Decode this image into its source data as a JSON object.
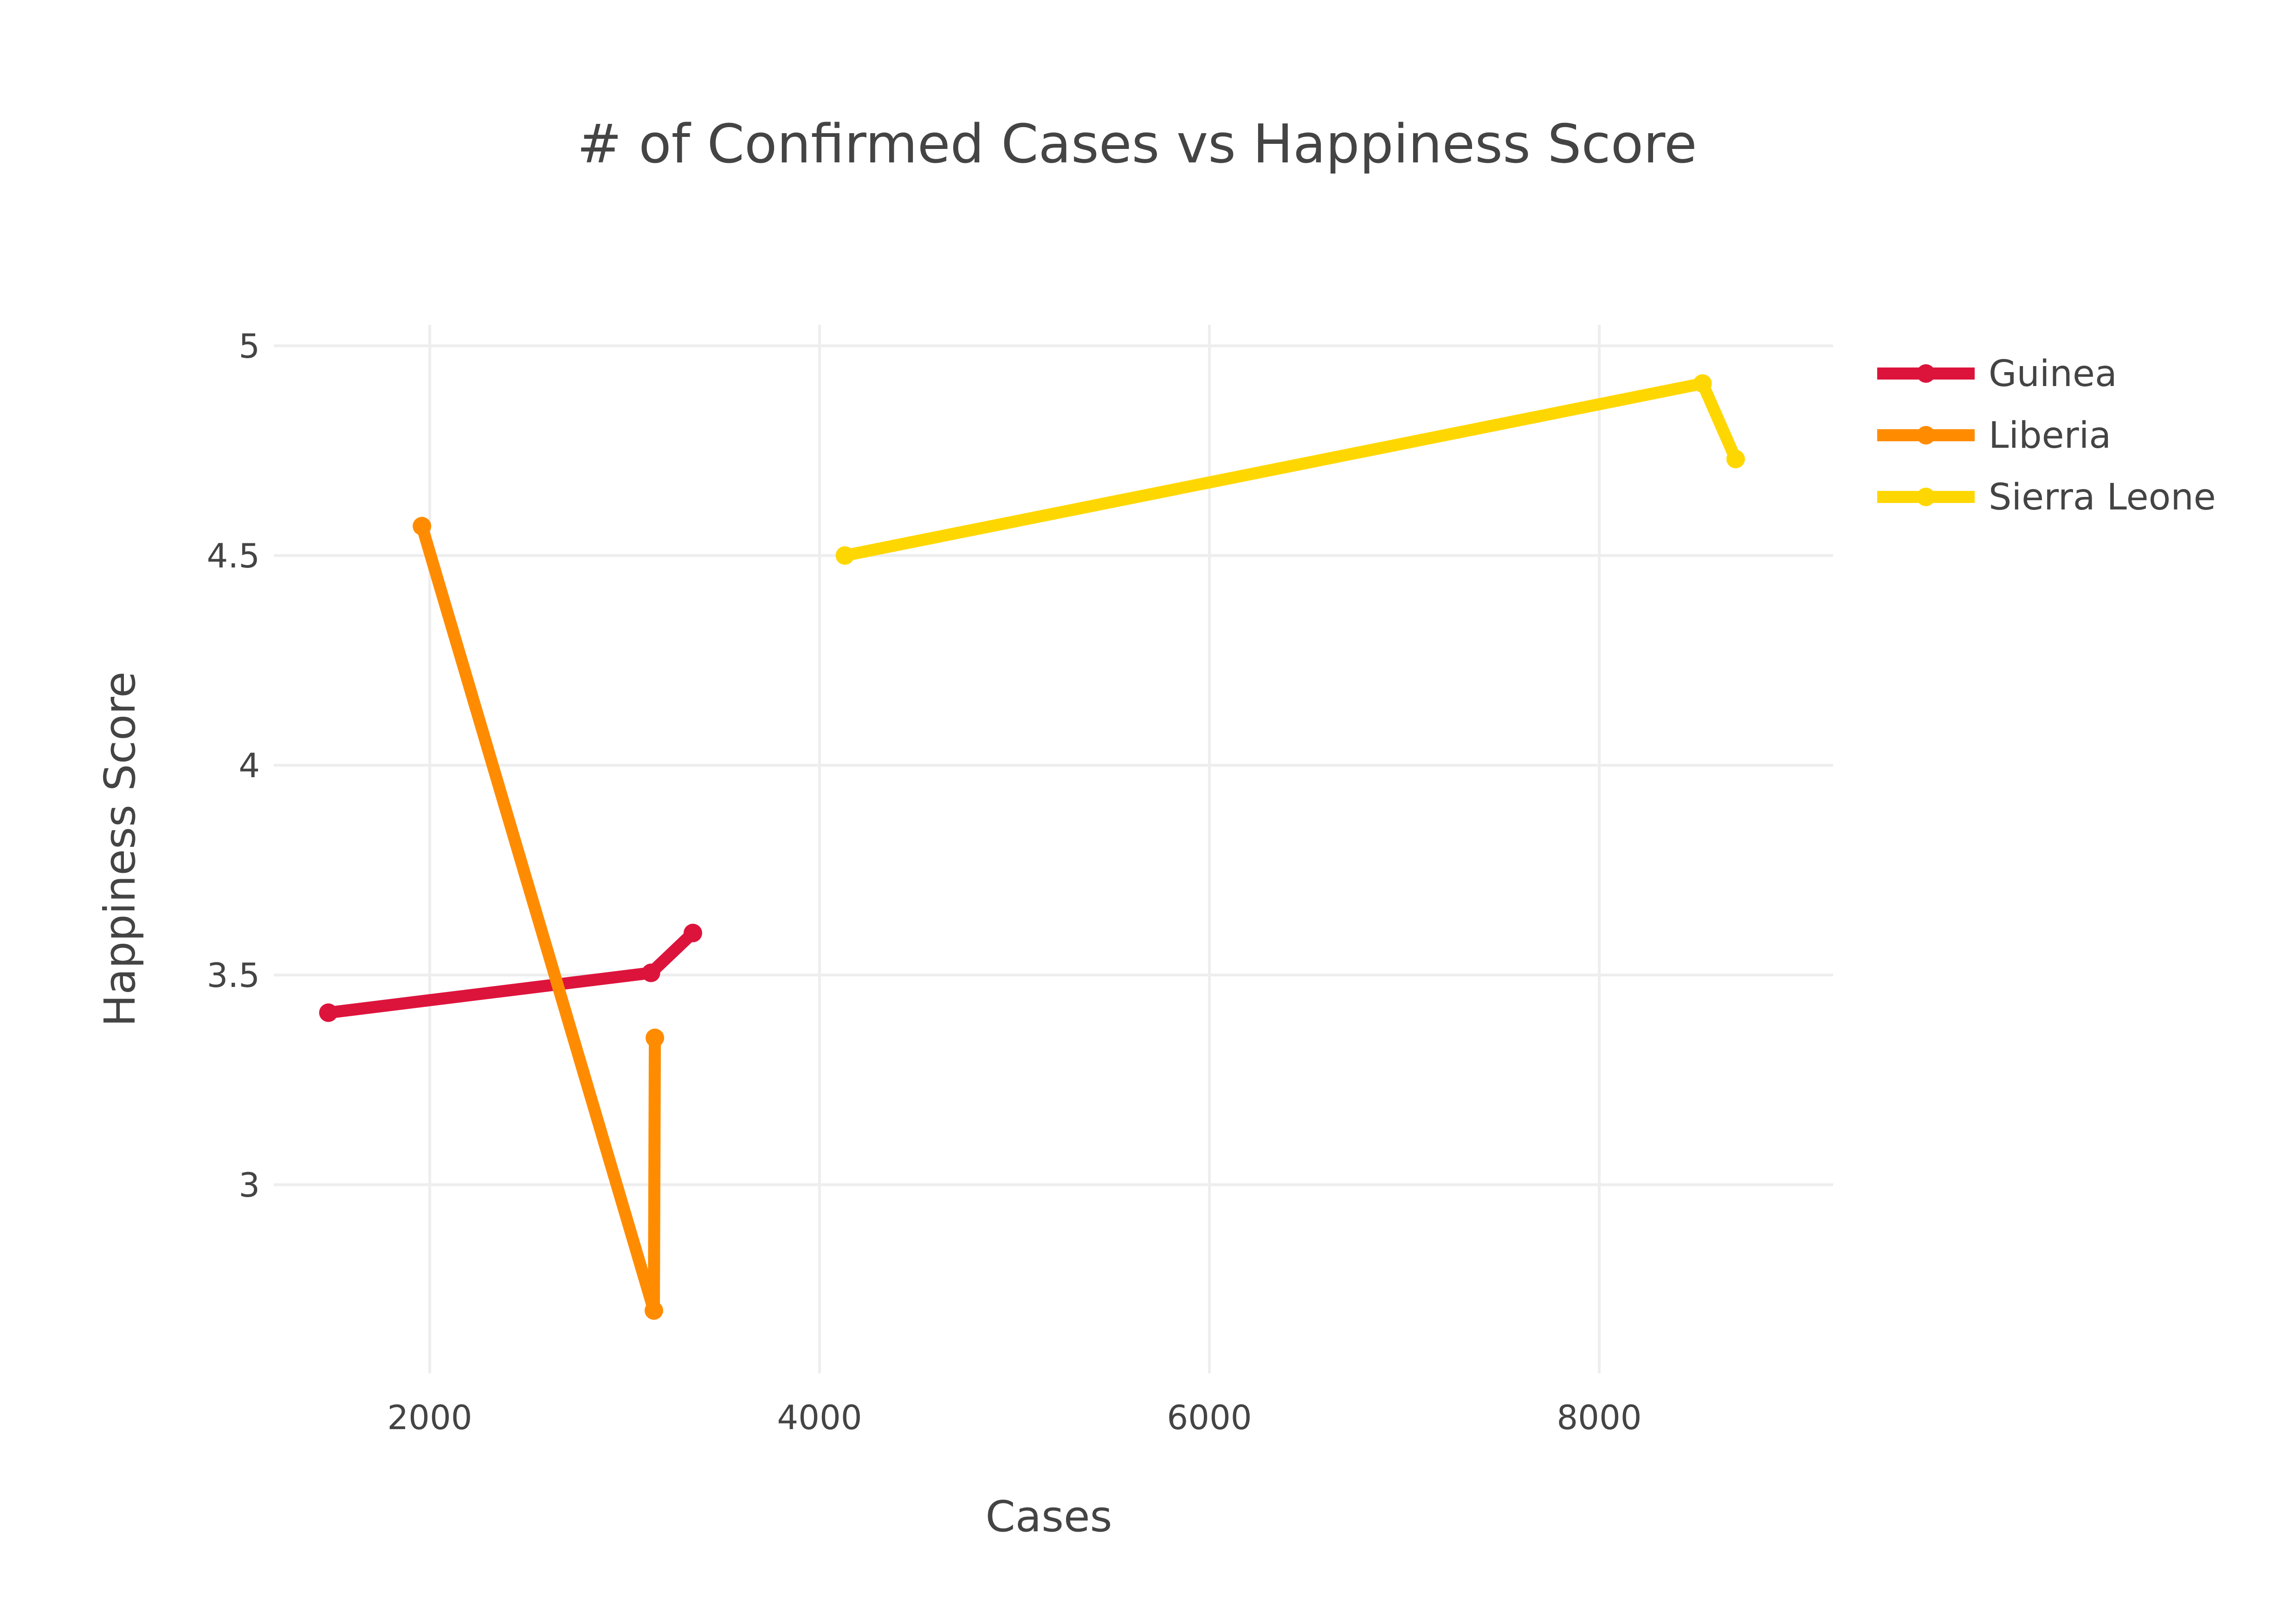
{
  "chart_data": {
    "type": "line",
    "title": "# of Confirmed Cases vs Happiness Score",
    "xlabel": "Cases",
    "ylabel": "Happiness Score",
    "xlim": [
      1200,
      9200
    ],
    "ylim": [
      2.55,
      5.05
    ],
    "x_ticks": [
      2000,
      4000,
      6000,
      8000
    ],
    "y_ticks": [
      3,
      3.5,
      4,
      4.5,
      5
    ],
    "x_tick_labels": [
      "2000",
      "4000",
      "6000",
      "8000"
    ],
    "y_tick_labels": [
      "3",
      "3.5",
      "4",
      "4.5",
      "5"
    ],
    "grid": true,
    "legend_position": "top-right",
    "series": [
      {
        "name": "Guinea",
        "color": "#dc143c",
        "x": [
          1480,
          3135,
          3350
        ],
        "y": [
          3.41,
          3.505,
          3.6
        ]
      },
      {
        "name": "Liberia",
        "color": "#ff8c00",
        "x": [
          1960,
          3150,
          3155
        ],
        "y": [
          4.57,
          2.7,
          3.35
        ]
      },
      {
        "name": "Sierra Leone",
        "color": "#ffd700",
        "x": [
          4130,
          8530,
          8700
        ],
        "y": [
          4.5,
          4.91,
          4.73
        ]
      }
    ]
  }
}
